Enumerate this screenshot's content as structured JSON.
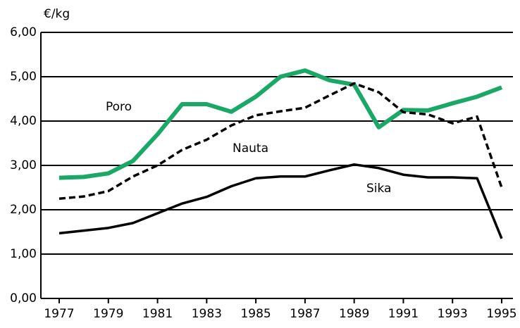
{
  "chart_data": {
    "type": "line",
    "y_label": "€/kg",
    "x": [
      1977,
      1978,
      1979,
      1980,
      1981,
      1982,
      1983,
      1984,
      1985,
      1986,
      1987,
      1988,
      1989,
      1990,
      1991,
      1992,
      1993,
      1994,
      1995
    ],
    "series": [
      {
        "name": "Poro",
        "color": "#1aa866",
        "dashed": false,
        "values": [
          2.72,
          2.74,
          2.82,
          3.1,
          3.7,
          4.38,
          4.38,
          4.21,
          4.55,
          5.0,
          5.14,
          4.92,
          4.82,
          3.86,
          4.25,
          4.24,
          4.4,
          4.55,
          4.76
        ]
      },
      {
        "name": "Nauta",
        "color": "#000000",
        "dashed": true,
        "values": [
          2.25,
          2.3,
          2.42,
          2.75,
          3.0,
          3.35,
          3.58,
          3.9,
          4.13,
          4.22,
          4.3,
          4.58,
          4.85,
          4.65,
          4.2,
          4.15,
          3.95,
          4.1,
          2.5
        ]
      },
      {
        "name": "Sika",
        "color": "#000000",
        "dashed": false,
        "values": [
          1.47,
          1.53,
          1.59,
          1.7,
          1.92,
          2.14,
          2.29,
          2.53,
          2.71,
          2.75,
          2.75,
          2.89,
          3.02,
          2.94,
          2.79,
          2.73,
          2.73,
          2.71,
          1.35
        ]
      }
    ],
    "xlim": [
      1977,
      1995
    ],
    "xticks": [
      1977,
      1979,
      1981,
      1983,
      1985,
      1987,
      1989,
      1991,
      1993,
      1995
    ],
    "ylim": [
      0,
      6
    ],
    "yticks": [
      {
        "value": 0,
        "label": "0,00"
      },
      {
        "value": 1,
        "label": "1,00"
      },
      {
        "value": 2,
        "label": "2,00"
      },
      {
        "value": 3,
        "label": "3,00"
      },
      {
        "value": 4,
        "label": "4,00"
      },
      {
        "value": 5,
        "label": "5,00"
      },
      {
        "value": 6,
        "label": "6,00"
      }
    ],
    "grid": true
  }
}
